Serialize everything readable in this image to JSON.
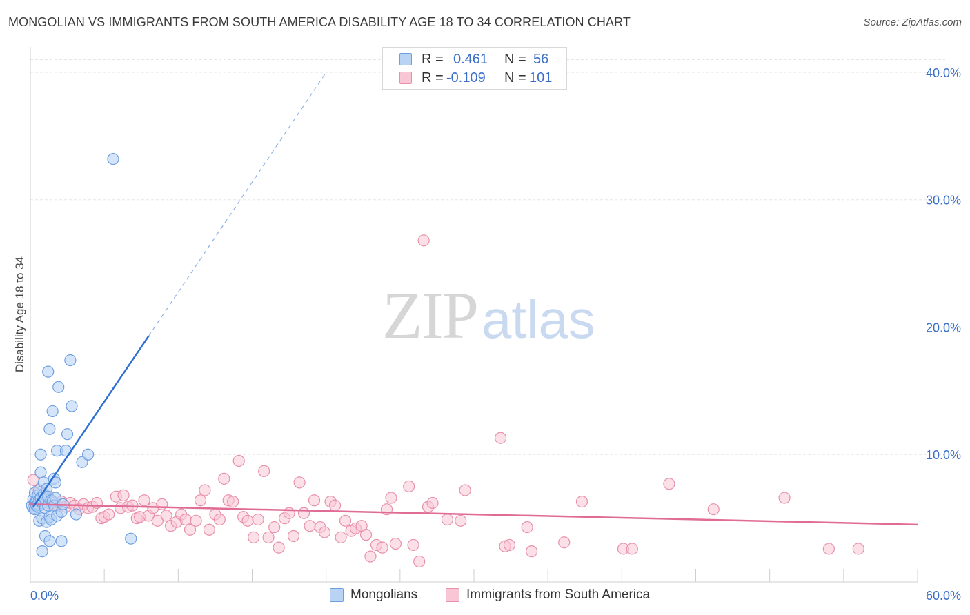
{
  "header": {
    "title": "MONGOLIAN VS IMMIGRANTS FROM SOUTH AMERICA DISABILITY AGE 18 TO 34 CORRELATION CHART",
    "source": "Source: ZipAtlas.com"
  },
  "watermark": {
    "part1": "ZIP",
    "part2": "atlas"
  },
  "legend": {
    "r_label": "R =",
    "n_label": "N =",
    "rows": [
      {
        "r": "0.461",
        "n": "56"
      },
      {
        "r": "-0.109",
        "n": "101"
      }
    ]
  },
  "colors": {
    "blue_fill": "#b9d3f5",
    "blue_stroke": "#6f9fe0",
    "blue_line": "#2f6fd1",
    "pink_fill": "#f9c6d5",
    "pink_stroke": "#e890ab",
    "pink_line": "#e06b95",
    "tick_label": "#3a6fc9",
    "grid": "#e6e6e6"
  },
  "chart_data": {
    "type": "scatter",
    "title": "MONGOLIAN VS IMMIGRANTS FROM SOUTH AMERICA DISABILITY AGE 18 TO 34 CORRELATION CHART",
    "xlabel": "",
    "ylabel": "Disability Age 18 to 34",
    "xlim": [
      0,
      60
    ],
    "ylim": [
      0,
      42
    ],
    "x_tick_labels": [
      "0.0%",
      "60.0%"
    ],
    "y_ticks": [
      10,
      20,
      30,
      40
    ],
    "y_tick_labels": [
      "10.0%",
      "20.0%",
      "30.0%",
      "40.0%"
    ],
    "grid": true,
    "legend_position": "top-center",
    "series": [
      {
        "name": "Mongolians",
        "color": "#b9d3f5",
        "r": 0.461,
        "n": 56,
        "trend": {
          "x0": 0.2,
          "y0": 5.9,
          "x1": 8.0,
          "y1": 19.3,
          "dash_x1": 20.0,
          "dash_y1": 40.0
        },
        "points": [
          [
            0.1,
            6.0
          ],
          [
            0.2,
            6.5
          ],
          [
            0.2,
            5.8
          ],
          [
            0.3,
            6.2
          ],
          [
            0.3,
            7.0
          ],
          [
            0.3,
            5.7
          ],
          [
            0.4,
            6.3
          ],
          [
            0.4,
            6.0
          ],
          [
            0.5,
            6.8
          ],
          [
            0.5,
            6.1
          ],
          [
            0.5,
            5.9
          ],
          [
            0.6,
            6.4
          ],
          [
            0.6,
            7.2
          ],
          [
            0.6,
            4.8
          ],
          [
            0.7,
            6.6
          ],
          [
            0.7,
            10.0
          ],
          [
            0.7,
            8.6
          ],
          [
            0.8,
            5.0
          ],
          [
            0.8,
            2.4
          ],
          [
            0.8,
            6.2
          ],
          [
            0.9,
            6.9
          ],
          [
            0.9,
            7.8
          ],
          [
            1.0,
            6.5
          ],
          [
            1.0,
            3.6
          ],
          [
            1.0,
            5.8
          ],
          [
            1.1,
            7.3
          ],
          [
            1.1,
            4.7
          ],
          [
            1.2,
            16.5
          ],
          [
            1.2,
            6.0
          ],
          [
            1.2,
            6.7
          ],
          [
            1.3,
            3.2
          ],
          [
            1.3,
            5.1
          ],
          [
            1.3,
            12.0
          ],
          [
            1.4,
            6.4
          ],
          [
            1.4,
            4.9
          ],
          [
            1.5,
            13.4
          ],
          [
            1.5,
            6.3
          ],
          [
            1.6,
            6.0
          ],
          [
            1.6,
            8.1
          ],
          [
            1.7,
            7.8
          ],
          [
            1.7,
            6.6
          ],
          [
            1.8,
            5.2
          ],
          [
            1.8,
            10.3
          ],
          [
            1.9,
            15.3
          ],
          [
            2.1,
            5.5
          ],
          [
            2.1,
            3.2
          ],
          [
            2.4,
            10.3
          ],
          [
            2.5,
            11.6
          ],
          [
            2.7,
            17.4
          ],
          [
            2.8,
            13.8
          ],
          [
            3.1,
            5.3
          ],
          [
            3.5,
            9.4
          ],
          [
            3.9,
            10.0
          ],
          [
            5.6,
            33.2
          ],
          [
            6.8,
            3.4
          ],
          [
            2.2,
            6.1
          ]
        ]
      },
      {
        "name": "Immigrants from South America",
        "color": "#f9c6d5",
        "r": -0.109,
        "n": 101,
        "trend": {
          "x0": 0.0,
          "y0": 6.1,
          "x1": 60.0,
          "y1": 4.5
        },
        "points": [
          [
            0.2,
            8.0
          ],
          [
            0.5,
            7.2
          ],
          [
            0.8,
            6.8
          ],
          [
            1.0,
            6.3
          ],
          [
            1.2,
            6.6
          ],
          [
            1.4,
            6.1
          ],
          [
            1.6,
            6.2
          ],
          [
            1.8,
            6.0
          ],
          [
            2.1,
            6.3
          ],
          [
            2.4,
            5.9
          ],
          [
            2.7,
            6.2
          ],
          [
            3.0,
            6.0
          ],
          [
            3.3,
            5.7
          ],
          [
            3.6,
            6.1
          ],
          [
            3.9,
            5.8
          ],
          [
            4.2,
            5.9
          ],
          [
            4.5,
            6.2
          ],
          [
            4.8,
            5.0
          ],
          [
            5.0,
            5.1
          ],
          [
            5.3,
            5.3
          ],
          [
            5.8,
            6.7
          ],
          [
            6.1,
            5.8
          ],
          [
            6.3,
            6.8
          ],
          [
            6.6,
            5.9
          ],
          [
            6.9,
            6.0
          ],
          [
            7.2,
            5.0
          ],
          [
            7.4,
            5.1
          ],
          [
            7.7,
            6.4
          ],
          [
            8.0,
            5.2
          ],
          [
            8.3,
            5.8
          ],
          [
            8.6,
            4.8
          ],
          [
            8.9,
            6.1
          ],
          [
            9.2,
            5.2
          ],
          [
            9.5,
            4.4
          ],
          [
            9.9,
            4.7
          ],
          [
            10.2,
            5.3
          ],
          [
            10.5,
            4.9
          ],
          [
            10.8,
            4.1
          ],
          [
            11.2,
            4.8
          ],
          [
            11.5,
            6.4
          ],
          [
            11.8,
            7.2
          ],
          [
            12.1,
            4.1
          ],
          [
            12.5,
            5.3
          ],
          [
            12.8,
            4.9
          ],
          [
            13.1,
            8.1
          ],
          [
            13.4,
            6.4
          ],
          [
            13.7,
            6.3
          ],
          [
            14.1,
            9.5
          ],
          [
            14.4,
            5.1
          ],
          [
            14.7,
            4.8
          ],
          [
            15.1,
            3.5
          ],
          [
            15.4,
            4.9
          ],
          [
            15.8,
            8.7
          ],
          [
            16.1,
            3.5
          ],
          [
            16.5,
            4.3
          ],
          [
            16.8,
            2.7
          ],
          [
            17.2,
            5.0
          ],
          [
            17.5,
            5.4
          ],
          [
            17.8,
            3.6
          ],
          [
            18.2,
            7.8
          ],
          [
            18.5,
            5.4
          ],
          [
            18.9,
            4.4
          ],
          [
            19.2,
            6.4
          ],
          [
            19.6,
            4.3
          ],
          [
            19.9,
            3.9
          ],
          [
            20.3,
            6.3
          ],
          [
            20.6,
            6.0
          ],
          [
            21.0,
            3.5
          ],
          [
            21.3,
            4.8
          ],
          [
            21.7,
            4.0
          ],
          [
            22.0,
            4.2
          ],
          [
            22.4,
            4.4
          ],
          [
            22.7,
            3.7
          ],
          [
            23.0,
            2.0
          ],
          [
            23.4,
            2.9
          ],
          [
            23.8,
            2.7
          ],
          [
            24.1,
            5.7
          ],
          [
            24.4,
            6.6
          ],
          [
            24.7,
            3.0
          ],
          [
            25.6,
            7.5
          ],
          [
            25.9,
            2.9
          ],
          [
            26.3,
            1.6
          ],
          [
            26.6,
            26.8
          ],
          [
            26.9,
            5.9
          ],
          [
            27.2,
            6.2
          ],
          [
            28.2,
            4.9
          ],
          [
            29.1,
            4.8
          ],
          [
            29.4,
            7.2
          ],
          [
            31.8,
            11.3
          ],
          [
            32.1,
            2.8
          ],
          [
            32.4,
            2.9
          ],
          [
            33.6,
            4.3
          ],
          [
            33.9,
            2.4
          ],
          [
            36.1,
            3.1
          ],
          [
            37.3,
            6.3
          ],
          [
            40.1,
            2.6
          ],
          [
            40.7,
            2.6
          ],
          [
            43.2,
            7.7
          ],
          [
            46.2,
            5.7
          ],
          [
            51.0,
            6.6
          ],
          [
            54.0,
            2.6
          ],
          [
            56.0,
            2.6
          ]
        ]
      }
    ]
  },
  "bottom_legend": {
    "items": [
      "Mongolians",
      "Immigrants from South America"
    ]
  }
}
